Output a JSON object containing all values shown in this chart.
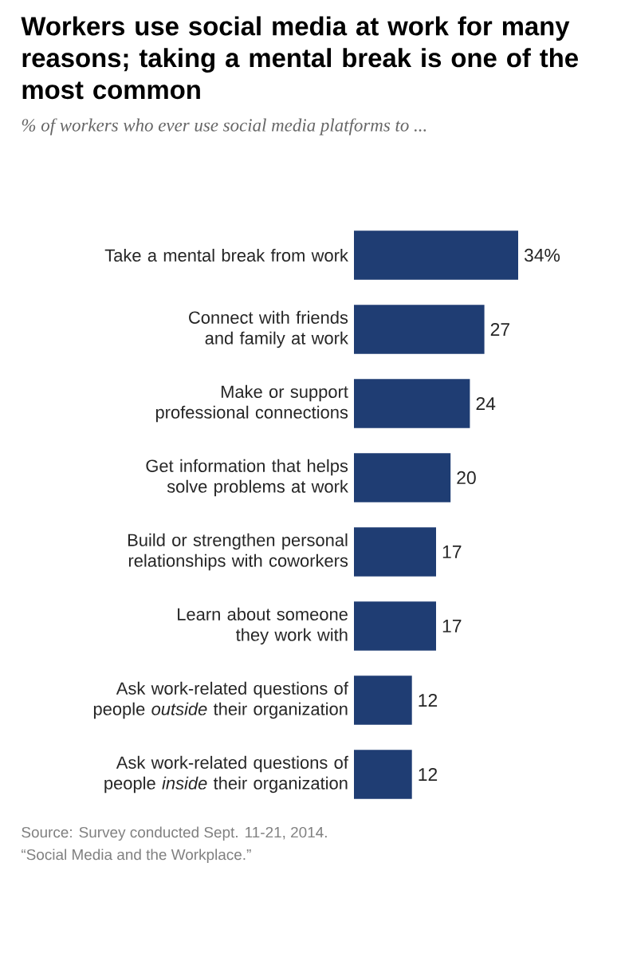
{
  "chart_data": {
    "type": "bar",
    "orientation": "horizontal",
    "title": "Workers use social media at work for many reasons; taking a mental break is one of the most common",
    "subtitle": "% of workers who ever use social media platforms to ...",
    "categories": [
      "Take a mental break from work",
      "Connect with friends and family at work",
      "Make or support professional connections",
      "Get information that helps solve problems at work",
      "Build or strengthen personal relationships with coworkers",
      "Learn about someone they work with",
      "Ask work-related questions of people *outside* their organization",
      "Ask work-related questions of people *inside* their organization"
    ],
    "values": [
      34,
      27,
      24,
      20,
      17,
      17,
      12,
      12
    ],
    "value_labels": [
      "34%",
      "27",
      "24",
      "20",
      "17",
      "17",
      "12",
      "12"
    ],
    "color": "#1f3d73",
    "annotations": [
      "Source: Survey conducted Sept. 11-21, 2014.",
      "“Social Media and the Workplace.”"
    ]
  }
}
